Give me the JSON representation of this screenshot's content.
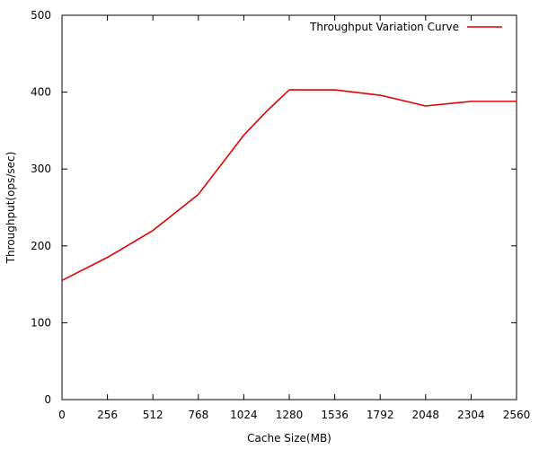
{
  "chart_data": {
    "type": "line",
    "xlabel": "Cache Size(MB)",
    "ylabel": "Throughput(ops/sec)",
    "xlim": [
      0,
      2560
    ],
    "ylim": [
      0,
      500
    ],
    "xticks": [
      0,
      256,
      512,
      768,
      1024,
      1280,
      1536,
      1792,
      2048,
      2304,
      2560
    ],
    "yticks": [
      0,
      100,
      200,
      300,
      400,
      500
    ],
    "grid": false,
    "legend_position": "top-right",
    "series": [
      {
        "name": "Throughput Variation Curve",
        "color": "#e00000",
        "x": [
          0,
          256,
          512,
          768,
          1024,
          1152,
          1280,
          1536,
          1792,
          2048,
          2304,
          2560
        ],
        "y": [
          155,
          185,
          220,
          267,
          344,
          375,
          403,
          403,
          396,
          382,
          388,
          388
        ]
      }
    ]
  }
}
